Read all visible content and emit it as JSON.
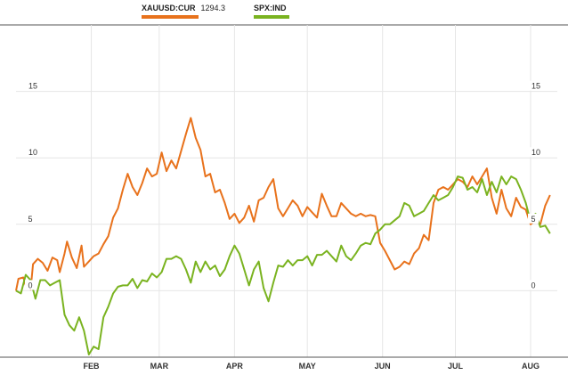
{
  "chart_data": {
    "type": "line",
    "x_range": [
      "2014-01-01",
      "2014-08-12"
    ],
    "ylim": [
      -5,
      20
    ],
    "y_ticks": [
      0,
      5,
      10,
      15
    ],
    "x_ticks": [
      {
        "label": "FEB",
        "date": "2014-02-01"
      },
      {
        "label": "MAR",
        "date": "2014-03-01"
      },
      {
        "label": "APR",
        "date": "2014-04-01"
      },
      {
        "label": "MAY",
        "date": "2014-05-01"
      },
      {
        "label": "JUN",
        "date": "2014-06-01"
      },
      {
        "label": "JUL",
        "date": "2014-07-01"
      },
      {
        "label": "AUG",
        "date": "2014-08-01"
      }
    ],
    "legend_position": "top",
    "grid": true,
    "series": [
      {
        "name": "XAUUSD:CUR",
        "value_label": "1294.3",
        "color": "#e8721c",
        "points": [
          [
            "2014-01-01",
            0.0
          ],
          [
            "2014-01-02",
            0.9
          ],
          [
            "2014-01-04",
            1.0
          ],
          [
            "2014-01-05",
            0.4
          ],
          [
            "2014-01-07",
            0.1
          ],
          [
            "2014-01-08",
            2.0
          ],
          [
            "2014-01-10",
            2.4
          ],
          [
            "2014-01-12",
            2.1
          ],
          [
            "2014-01-14",
            1.5
          ],
          [
            "2014-01-16",
            2.5
          ],
          [
            "2014-01-18",
            2.3
          ],
          [
            "2014-01-19",
            1.4
          ],
          [
            "2014-01-21",
            2.8
          ],
          [
            "2014-01-22",
            3.7
          ],
          [
            "2014-01-24",
            2.5
          ],
          [
            "2014-01-26",
            1.7
          ],
          [
            "2014-01-28",
            3.4
          ],
          [
            "2014-01-29",
            1.8
          ],
          [
            "2014-01-31",
            2.2
          ],
          [
            "2014-02-02",
            2.6
          ],
          [
            "2014-02-04",
            2.8
          ],
          [
            "2014-02-06",
            3.5
          ],
          [
            "2014-02-08",
            4.1
          ],
          [
            "2014-02-10",
            5.5
          ],
          [
            "2014-02-12",
            6.2
          ],
          [
            "2014-02-14",
            7.6
          ],
          [
            "2014-02-16",
            8.8
          ],
          [
            "2014-02-18",
            7.8
          ],
          [
            "2014-02-20",
            7.2
          ],
          [
            "2014-02-22",
            8.1
          ],
          [
            "2014-02-24",
            9.2
          ],
          [
            "2014-02-26",
            8.6
          ],
          [
            "2014-02-28",
            8.8
          ],
          [
            "2014-03-02",
            10.4
          ],
          [
            "2014-03-04",
            9.0
          ],
          [
            "2014-03-06",
            9.8
          ],
          [
            "2014-03-08",
            9.2
          ],
          [
            "2014-03-10",
            10.5
          ],
          [
            "2014-03-12",
            11.8
          ],
          [
            "2014-03-14",
            13.0
          ],
          [
            "2014-03-16",
            11.5
          ],
          [
            "2014-03-18",
            10.6
          ],
          [
            "2014-03-20",
            8.6
          ],
          [
            "2014-03-22",
            8.8
          ],
          [
            "2014-03-24",
            7.4
          ],
          [
            "2014-03-26",
            7.6
          ],
          [
            "2014-03-28",
            6.6
          ],
          [
            "2014-03-30",
            5.4
          ],
          [
            "2014-04-01",
            5.8
          ],
          [
            "2014-04-03",
            5.1
          ],
          [
            "2014-04-05",
            5.5
          ],
          [
            "2014-04-07",
            6.4
          ],
          [
            "2014-04-09",
            5.2
          ],
          [
            "2014-04-11",
            6.8
          ],
          [
            "2014-04-13",
            7.0
          ],
          [
            "2014-04-15",
            7.8
          ],
          [
            "2014-04-17",
            8.4
          ],
          [
            "2014-04-19",
            6.2
          ],
          [
            "2014-04-21",
            5.6
          ],
          [
            "2014-04-23",
            6.2
          ],
          [
            "2014-04-25",
            6.8
          ],
          [
            "2014-04-27",
            6.4
          ],
          [
            "2014-04-29",
            5.6
          ],
          [
            "2014-05-01",
            6.3
          ],
          [
            "2014-05-03",
            5.9
          ],
          [
            "2014-05-05",
            5.5
          ],
          [
            "2014-05-07",
            7.3
          ],
          [
            "2014-05-09",
            6.4
          ],
          [
            "2014-05-11",
            5.6
          ],
          [
            "2014-05-13",
            5.6
          ],
          [
            "2014-05-15",
            6.6
          ],
          [
            "2014-05-17",
            6.2
          ],
          [
            "2014-05-19",
            5.8
          ],
          [
            "2014-05-21",
            5.6
          ],
          [
            "2014-05-23",
            5.8
          ],
          [
            "2014-05-25",
            5.6
          ],
          [
            "2014-05-27",
            5.7
          ],
          [
            "2014-05-29",
            5.6
          ],
          [
            "2014-05-31",
            3.6
          ],
          [
            "2014-06-02",
            3.0
          ],
          [
            "2014-06-04",
            2.3
          ],
          [
            "2014-06-06",
            1.6
          ],
          [
            "2014-06-08",
            1.8
          ],
          [
            "2014-06-10",
            2.2
          ],
          [
            "2014-06-12",
            2.0
          ],
          [
            "2014-06-14",
            2.8
          ],
          [
            "2014-06-16",
            3.2
          ],
          [
            "2014-06-18",
            4.2
          ],
          [
            "2014-06-20",
            3.8
          ],
          [
            "2014-06-22",
            6.6
          ],
          [
            "2014-06-24",
            7.6
          ],
          [
            "2014-06-26",
            7.8
          ],
          [
            "2014-06-28",
            7.6
          ],
          [
            "2014-06-30",
            8.0
          ],
          [
            "2014-07-02",
            8.4
          ],
          [
            "2014-07-04",
            8.2
          ],
          [
            "2014-07-06",
            7.8
          ],
          [
            "2014-07-08",
            8.6
          ],
          [
            "2014-07-10",
            8.0
          ],
          [
            "2014-07-12",
            8.6
          ],
          [
            "2014-07-14",
            9.2
          ],
          [
            "2014-07-16",
            7.0
          ],
          [
            "2014-07-18",
            5.8
          ],
          [
            "2014-07-20",
            7.6
          ],
          [
            "2014-07-22",
            6.2
          ],
          [
            "2014-07-24",
            5.6
          ],
          [
            "2014-07-26",
            7.0
          ],
          [
            "2014-07-28",
            6.3
          ],
          [
            "2014-07-30",
            6.1
          ],
          [
            "2014-08-01",
            5.0
          ],
          [
            "2014-08-03",
            5.3
          ],
          [
            "2014-08-05",
            5.0
          ],
          [
            "2014-08-07",
            6.4
          ],
          [
            "2014-08-09",
            7.2
          ]
        ]
      },
      {
        "name": "SPX:IND",
        "color": "#7ab320",
        "points": [
          [
            "2014-01-01",
            0.0
          ],
          [
            "2014-01-03",
            -0.2
          ],
          [
            "2014-01-05",
            1.2
          ],
          [
            "2014-01-07",
            0.8
          ],
          [
            "2014-01-09",
            -0.6
          ],
          [
            "2014-01-11",
            0.8
          ],
          [
            "2014-01-13",
            0.8
          ],
          [
            "2014-01-15",
            0.4
          ],
          [
            "2014-01-17",
            0.6
          ],
          [
            "2014-01-19",
            0.8
          ],
          [
            "2014-01-21",
            -1.8
          ],
          [
            "2014-01-23",
            -2.6
          ],
          [
            "2014-01-25",
            -3.0
          ],
          [
            "2014-01-27",
            -2.0
          ],
          [
            "2014-01-29",
            -3.0
          ],
          [
            "2014-01-31",
            -4.8
          ],
          [
            "2014-02-02",
            -4.2
          ],
          [
            "2014-02-04",
            -4.4
          ],
          [
            "2014-02-06",
            -2.0
          ],
          [
            "2014-02-08",
            -1.2
          ],
          [
            "2014-02-10",
            -0.2
          ],
          [
            "2014-02-12",
            0.3
          ],
          [
            "2014-02-14",
            0.4
          ],
          [
            "2014-02-16",
            0.4
          ],
          [
            "2014-02-18",
            0.9
          ],
          [
            "2014-02-20",
            0.2
          ],
          [
            "2014-02-22",
            0.8
          ],
          [
            "2014-02-24",
            0.7
          ],
          [
            "2014-02-26",
            1.3
          ],
          [
            "2014-02-28",
            1.0
          ],
          [
            "2014-03-02",
            1.4
          ],
          [
            "2014-03-04",
            2.4
          ],
          [
            "2014-03-06",
            2.4
          ],
          [
            "2014-03-08",
            2.6
          ],
          [
            "2014-03-10",
            2.4
          ],
          [
            "2014-03-12",
            1.6
          ],
          [
            "2014-03-14",
            0.6
          ],
          [
            "2014-03-16",
            2.2
          ],
          [
            "2014-03-18",
            1.4
          ],
          [
            "2014-03-20",
            2.2
          ],
          [
            "2014-03-22",
            1.6
          ],
          [
            "2014-03-24",
            1.9
          ],
          [
            "2014-03-26",
            1.1
          ],
          [
            "2014-03-28",
            1.6
          ],
          [
            "2014-03-30",
            2.6
          ],
          [
            "2014-04-01",
            3.4
          ],
          [
            "2014-04-03",
            2.8
          ],
          [
            "2014-04-05",
            1.6
          ],
          [
            "2014-04-07",
            0.4
          ],
          [
            "2014-04-09",
            1.6
          ],
          [
            "2014-04-11",
            2.2
          ],
          [
            "2014-04-13",
            0.2
          ],
          [
            "2014-04-15",
            -0.8
          ],
          [
            "2014-04-17",
            0.6
          ],
          [
            "2014-04-19",
            1.9
          ],
          [
            "2014-04-21",
            1.8
          ],
          [
            "2014-04-23",
            2.3
          ],
          [
            "2014-04-25",
            1.9
          ],
          [
            "2014-04-27",
            2.3
          ],
          [
            "2014-04-29",
            2.3
          ],
          [
            "2014-05-01",
            2.6
          ],
          [
            "2014-05-03",
            1.9
          ],
          [
            "2014-05-05",
            2.7
          ],
          [
            "2014-05-07",
            2.7
          ],
          [
            "2014-05-09",
            3.0
          ],
          [
            "2014-05-11",
            2.6
          ],
          [
            "2014-05-13",
            2.2
          ],
          [
            "2014-05-15",
            3.4
          ],
          [
            "2014-05-17",
            2.6
          ],
          [
            "2014-05-19",
            2.3
          ],
          [
            "2014-05-21",
            2.8
          ],
          [
            "2014-05-23",
            3.4
          ],
          [
            "2014-05-25",
            3.6
          ],
          [
            "2014-05-27",
            3.5
          ],
          [
            "2014-05-29",
            4.3
          ],
          [
            "2014-05-31",
            4.6
          ],
          [
            "2014-06-02",
            5.0
          ],
          [
            "2014-06-04",
            5.0
          ],
          [
            "2014-06-06",
            5.3
          ],
          [
            "2014-06-08",
            5.6
          ],
          [
            "2014-06-10",
            6.6
          ],
          [
            "2014-06-12",
            6.4
          ],
          [
            "2014-06-14",
            5.6
          ],
          [
            "2014-06-16",
            5.8
          ],
          [
            "2014-06-18",
            6.0
          ],
          [
            "2014-06-20",
            6.6
          ],
          [
            "2014-06-22",
            7.2
          ],
          [
            "2014-06-24",
            6.8
          ],
          [
            "2014-06-26",
            7.0
          ],
          [
            "2014-06-28",
            7.2
          ],
          [
            "2014-06-30",
            7.8
          ],
          [
            "2014-07-02",
            8.6
          ],
          [
            "2014-07-04",
            8.5
          ],
          [
            "2014-07-06",
            7.6
          ],
          [
            "2014-07-08",
            7.8
          ],
          [
            "2014-07-10",
            7.4
          ],
          [
            "2014-07-12",
            8.4
          ],
          [
            "2014-07-14",
            7.2
          ],
          [
            "2014-07-16",
            8.2
          ],
          [
            "2014-07-18",
            7.4
          ],
          [
            "2014-07-20",
            8.6
          ],
          [
            "2014-07-22",
            8.0
          ],
          [
            "2014-07-24",
            8.6
          ],
          [
            "2014-07-26",
            8.4
          ],
          [
            "2014-07-28",
            7.6
          ],
          [
            "2014-07-30",
            6.6
          ],
          [
            "2014-08-01",
            5.2
          ],
          [
            "2014-08-03",
            5.8
          ],
          [
            "2014-08-05",
            4.8
          ],
          [
            "2014-08-07",
            4.9
          ],
          [
            "2014-08-09",
            4.3
          ]
        ]
      }
    ]
  }
}
